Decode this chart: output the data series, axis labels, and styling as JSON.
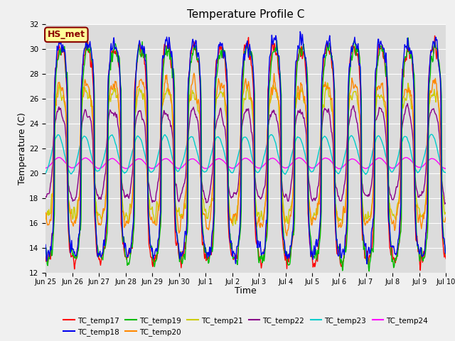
{
  "title": "Temperature Profile C",
  "xlabel": "Time",
  "ylabel": "Temperature (C)",
  "ylim": [
    12,
    32
  ],
  "annotation": "HS_met",
  "annotation_color": "#8B0000",
  "annotation_bg": "#FFFF99",
  "background_color": "#DCDCDC",
  "grid_color": "#FFFFFF",
  "series_colors": {
    "TC_temp17": "#FF0000",
    "TC_temp18": "#0000EE",
    "TC_temp19": "#00BB00",
    "TC_temp20": "#FF8800",
    "TC_temp21": "#CCCC00",
    "TC_temp22": "#880088",
    "TC_temp23": "#00CCCC",
    "TC_temp24": "#FF00FF"
  },
  "x_tick_labels": [
    "Jun 25",
    "Jun 26",
    "Jun 27",
    "Jun 28",
    "Jun 29",
    "Jun 30",
    "Jul 1",
    "Jul 2",
    "Jul 3",
    "Jul 4",
    "Jul 5",
    "Jul 6",
    "Jul 7",
    "Jul 8",
    "Jul 9",
    "Jul 10"
  ],
  "y_ticks": [
    12,
    14,
    16,
    18,
    20,
    22,
    24,
    26,
    28,
    30,
    32
  ]
}
